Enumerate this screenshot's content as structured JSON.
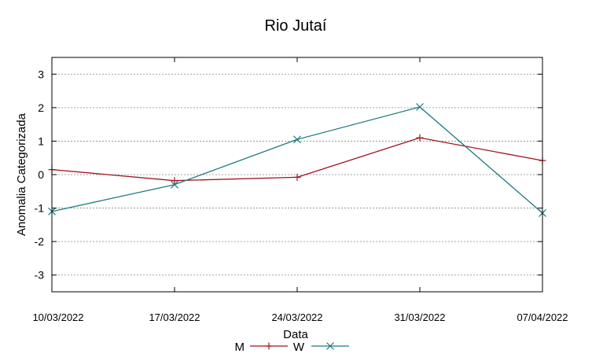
{
  "chart_data": {
    "type": "line",
    "title": "Rio Jutaí",
    "xlabel": "Data",
    "ylabel": "Anomalia Categorizada",
    "categories": [
      "10/03/2022",
      "17/03/2022",
      "24/03/2022",
      "31/03/2022",
      "07/04/2022"
    ],
    "ylim": [
      -3.5,
      3.5
    ],
    "yticks": [
      -3,
      -2,
      -1,
      0,
      1,
      2,
      3
    ],
    "ytick_labels": [
      "-3",
      "-2",
      "-1",
      "0",
      "1",
      "2",
      "3"
    ],
    "grid": true,
    "legend_position": "bottom-center",
    "series": [
      {
        "name": "M",
        "color": "#a0141e",
        "marker": "plus",
        "values": [
          0.15,
          -0.18,
          -0.08,
          1.1,
          0.42
        ]
      },
      {
        "name": "W",
        "color": "#1f7a80",
        "marker": "cross",
        "values": [
          -1.1,
          -0.3,
          1.05,
          2.02,
          -1.15
        ]
      }
    ]
  }
}
